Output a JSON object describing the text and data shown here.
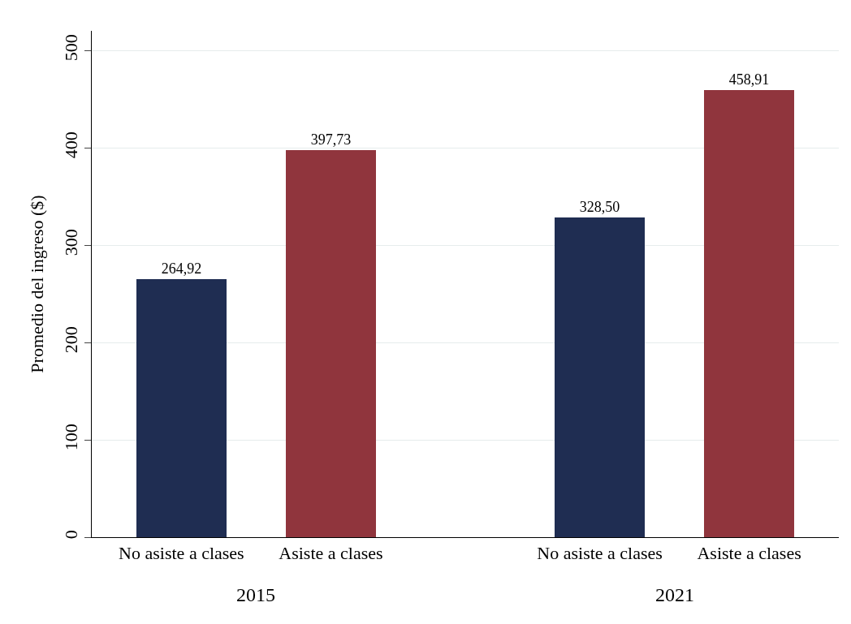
{
  "chart_data": {
    "type": "bar",
    "ylabel": "Promedio del ingreso ($)",
    "categories": [
      "No asiste a clases",
      "Asiste a clases",
      "No asiste a clases",
      "Asiste a clases"
    ],
    "values": [
      264.92,
      397.73,
      328.5,
      458.91
    ],
    "value_labels": [
      "264,92",
      "397,73",
      "328,50",
      "458,91"
    ],
    "colors": [
      "#1f2d52",
      "#90353d",
      "#1f2d52",
      "#90353d"
    ],
    "annotations": [
      "2015",
      "2021"
    ],
    "ylim": [
      0,
      520
    ],
    "yticks": [
      0,
      100,
      200,
      300,
      400,
      500
    ],
    "grid": "y",
    "legend": false
  }
}
